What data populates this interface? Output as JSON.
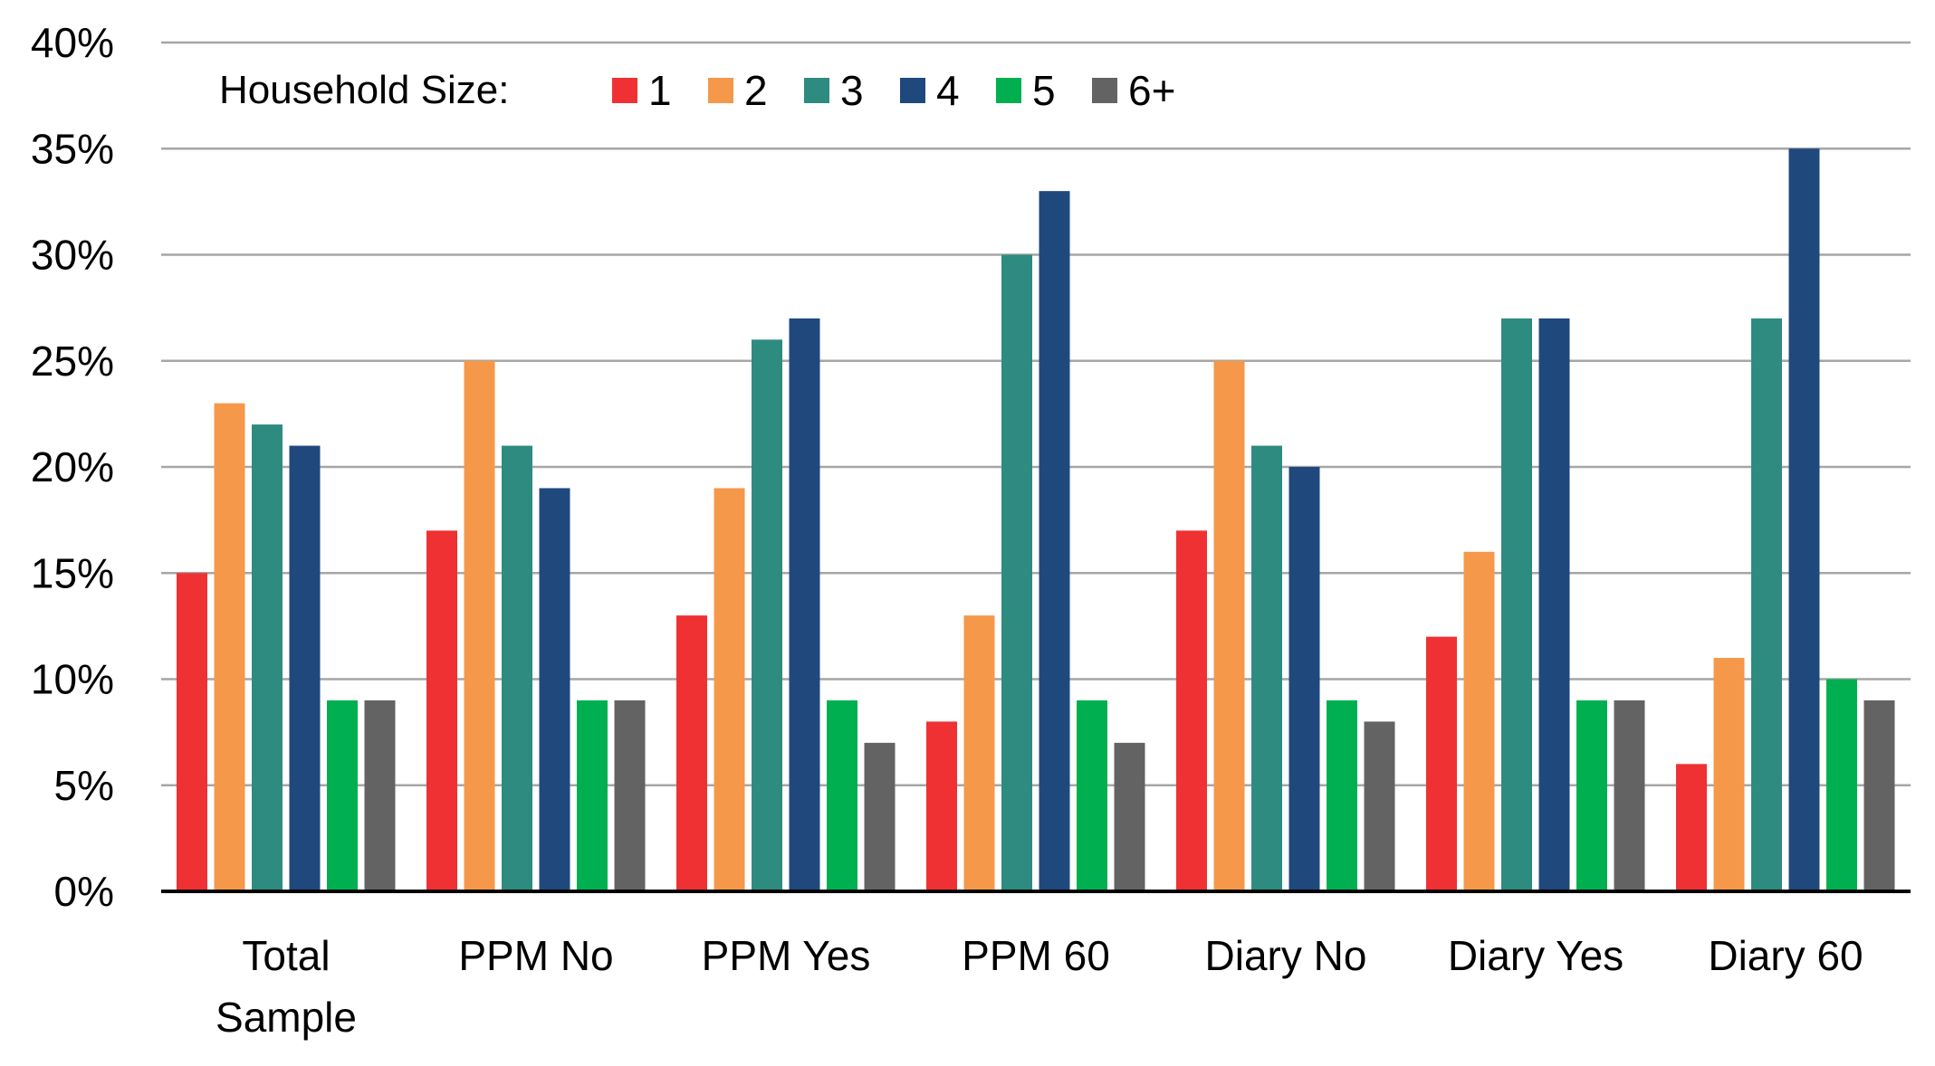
{
  "chart_data": {
    "type": "bar",
    "legend_title": "Household Size:",
    "legend_placement": "top-left",
    "categories": [
      "Total Sample",
      "PPM No",
      "PPM Yes",
      "PPM 60",
      "Diary No",
      "Diary Yes",
      "Diary 60"
    ],
    "series": [
      {
        "name": "1",
        "color": "#ef3133",
        "values": [
          15,
          17,
          13,
          8,
          17,
          12,
          6
        ]
      },
      {
        "name": "2",
        "color": "#f5984a",
        "values": [
          23,
          25,
          19,
          13,
          25,
          16,
          11
        ]
      },
      {
        "name": "3",
        "color": "#2e8b7f",
        "values": [
          22,
          21,
          26,
          30,
          21,
          27,
          27
        ]
      },
      {
        "name": "4",
        "color": "#1f497d",
        "values": [
          21,
          19,
          27,
          33,
          20,
          27,
          35
        ]
      },
      {
        "name": "5",
        "color": "#00b050",
        "values": [
          9,
          9,
          9,
          9,
          9,
          9,
          10
        ]
      },
      {
        "name": "6+",
        "color": "#636363",
        "values": [
          9,
          9,
          7,
          7,
          8,
          9,
          9
        ]
      }
    ],
    "y_ticks": [
      "0%",
      "5%",
      "10%",
      "15%",
      "20%",
      "25%",
      "30%",
      "35%",
      "40%"
    ],
    "ylim": [
      0,
      40
    ],
    "grid": true,
    "title": "",
    "xlabel": "",
    "ylabel": ""
  }
}
